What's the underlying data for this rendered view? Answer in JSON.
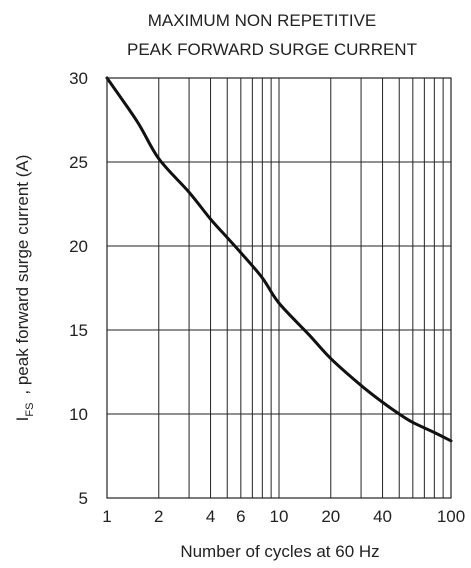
{
  "chart_data": {
    "type": "line",
    "title_lines": [
      "MAXIMUM NON REPETITIVE",
      "PEAK FORWARD SURGE CURRENT"
    ],
    "xlabel": "Number of cycles at 60 Hz",
    "ylabel_symbol": "I",
    "ylabel_subscript": "FS",
    "ylabel_text": ", peak forward surge current (A)",
    "x_scale": "log",
    "xlim": [
      1,
      100
    ],
    "ylim": [
      5,
      30
    ],
    "x_tick_values": [
      1,
      2,
      4,
      6,
      10,
      20,
      40,
      100
    ],
    "x_tick_labels": [
      "1",
      "2",
      "4",
      "6",
      "10",
      "20",
      "40",
      "100"
    ],
    "x_grid_values": [
      1,
      2,
      3,
      4,
      5,
      6,
      7,
      8,
      9,
      10,
      20,
      30,
      40,
      50,
      60,
      70,
      80,
      90,
      100
    ],
    "y_tick_values": [
      5,
      10,
      15,
      20,
      25,
      30
    ],
    "y_tick_labels": [
      "5",
      "10",
      "15",
      "20",
      "25",
      "30"
    ],
    "grid": true,
    "series": [
      {
        "x": [
          1,
          1.5,
          2,
          3,
          4,
          5,
          6,
          8,
          10,
          15,
          20,
          30,
          40,
          50,
          60,
          80,
          100
        ],
        "y": [
          30,
          27.4,
          25.2,
          23.2,
          21.6,
          20.5,
          19.6,
          18.1,
          16.6,
          14.7,
          13.3,
          11.7,
          10.7,
          10.0,
          9.5,
          8.9,
          8.4
        ]
      }
    ]
  }
}
